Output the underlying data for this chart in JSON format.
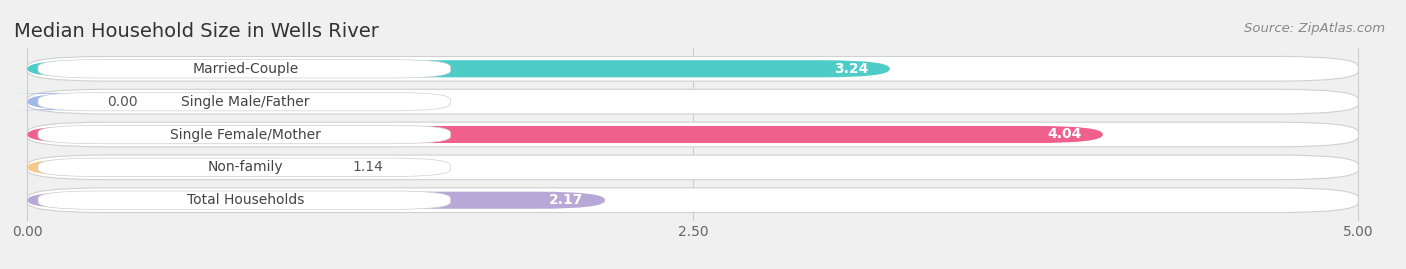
{
  "title": "Median Household Size in Wells River",
  "source": "Source: ZipAtlas.com",
  "categories": [
    "Married-Couple",
    "Single Male/Father",
    "Single Female/Mother",
    "Non-family",
    "Total Households"
  ],
  "values": [
    3.24,
    0.0,
    4.04,
    1.14,
    2.17
  ],
  "bar_colors": [
    "#4eccc8",
    "#a0b8ea",
    "#f0608c",
    "#f5c98a",
    "#b8a8d8"
  ],
  "xlim_max": 5.0,
  "xticks": [
    0.0,
    2.5,
    5.0
  ],
  "xtick_labels": [
    "0.00",
    "2.50",
    "5.00"
  ],
  "title_fontsize": 14,
  "source_fontsize": 9.5,
  "label_fontsize": 10,
  "value_fontsize": 10,
  "bg_color": "#f0f0f0",
  "bar_bg_color": "#e8e8e8",
  "grid_color": "#cccccc",
  "value_inside_threshold": 2.0
}
